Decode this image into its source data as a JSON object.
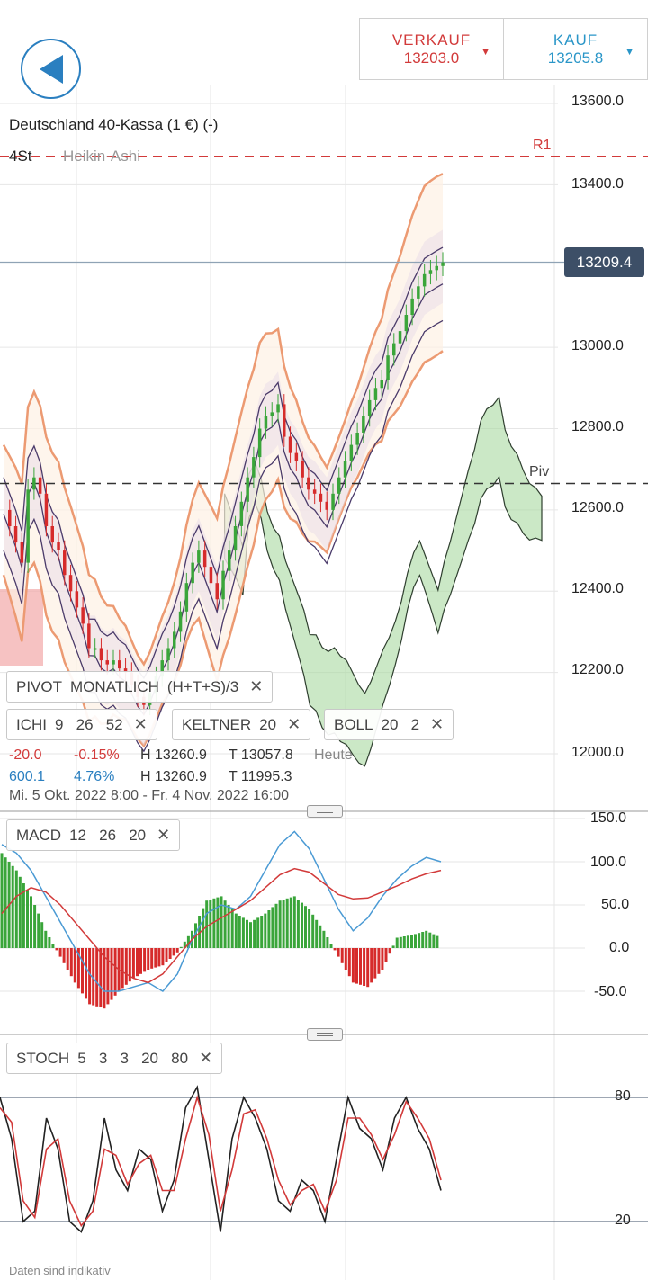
{
  "header": {
    "sell_label": "VERKAUF",
    "sell_price": "13203.0",
    "buy_label": "KAUF",
    "buy_price": "13205.8",
    "sell_color": "#d23a3a",
    "buy_color": "#2a96c8"
  },
  "instrument": {
    "title": "Deutschland 40-Kassa (1 €) (-)",
    "timeframe": "4St",
    "chart_type": "Heikin-Ashi"
  },
  "levels": {
    "r1_label": "R1",
    "pivot_label": "Piv",
    "current_price": "13209.4"
  },
  "indicators": {
    "pivot": {
      "name": "PIVOT",
      "period": "MONATLICH",
      "formula": "(H+T+S)/3"
    },
    "ichi": {
      "name": "ICHI",
      "params": "9   26   52"
    },
    "keltner": {
      "name": "KELTNER",
      "params": "20"
    },
    "boll": {
      "name": "BOLL",
      "params": "20   2"
    },
    "macd": {
      "name": "MACD",
      "params": "12   26   20"
    },
    "stoch": {
      "name": "STOCH",
      "params": "5   3   3   20   80"
    }
  },
  "stats": {
    "day_change": "-20.0",
    "day_change_pct": "-0.15%",
    "day_high": "H 13260.9",
    "day_low": "T 13057.8",
    "day_label": "Heute",
    "range_change": "600.1",
    "range_change_pct": "4.76%",
    "range_high": "H 13260.9",
    "range_low": "T 11995.3",
    "range_dates": "Mi. 5 Okt. 2022 8:00 - Fr. 4 Nov. 2022 16:00"
  },
  "footer": {
    "disclaimer": "Daten sind indikativ"
  },
  "icons": {
    "back": "back-arrow-icon",
    "close": "close-icon",
    "dropdown": "triangle-down-icon"
  },
  "chart_data": [
    {
      "type": "candlestick",
      "style": "Heikin-Ashi",
      "title": "Deutschland 40-Kassa (1 €) (-)",
      "ylim": [
        11850,
        13680
      ],
      "y_ticks": [
        "13600.0",
        "13400.0",
        "13000.0",
        "12800.0",
        "12600.0",
        "12400.0",
        "12200.0",
        "12000.0"
      ],
      "pivot": 12665,
      "r1": 13470,
      "last": 13209.4,
      "up_color": "#3aa53a",
      "down_color": "#d62b2b",
      "bollinger_color": "#ec9a72",
      "keltner_color": "#4a3a6a",
      "cloud_up_color": "#a8d8a0",
      "cloud_down_color": "#f2a8a8",
      "close_series": [
        12600,
        12560,
        12520,
        12470,
        12650,
        12680,
        12640,
        12560,
        12520,
        12500,
        12440,
        12400,
        12360,
        12320,
        12260,
        12260,
        12230,
        12220,
        12230,
        12210,
        12200,
        12170,
        12140,
        12120,
        12150,
        12190,
        12230,
        12260,
        12300,
        12350,
        12420,
        12470,
        12500,
        12460,
        12420,
        12380,
        12450,
        12500,
        12560,
        12620,
        12680,
        12730,
        12800,
        12830,
        12840,
        12860,
        12780,
        12740,
        12720,
        12680,
        12650,
        12640,
        12620,
        12600,
        12640,
        12680,
        12720,
        12760,
        12790,
        12830,
        12870,
        12900,
        12920,
        12980,
        13010,
        13040,
        13080,
        13120,
        13150,
        13180,
        13190,
        13200,
        13209
      ]
    },
    {
      "type": "line",
      "title": "MACD",
      "ylim": [
        -80,
        160
      ],
      "y_ticks": [
        "150.0",
        "100.0",
        "50.0",
        "0.0",
        "-50.0"
      ],
      "series": [
        {
          "name": "MACD",
          "color": "#4a9ad4",
          "values": [
            120,
            110,
            90,
            60,
            30,
            0,
            -30,
            -50,
            -50,
            -45,
            -40,
            -50,
            -30,
            10,
            40,
            50,
            45,
            60,
            90,
            120,
            135,
            115,
            80,
            45,
            20,
            35,
            60,
            80,
            95,
            105,
            100
          ]
        },
        {
          "name": "Signal",
          "color": "#d23a3a",
          "values": [
            40,
            60,
            70,
            65,
            50,
            30,
            10,
            -10,
            -25,
            -35,
            -40,
            -30,
            -10,
            10,
            25,
            35,
            45,
            55,
            70,
            85,
            92,
            88,
            75,
            62,
            57,
            58,
            65,
            72,
            80,
            86,
            90
          ]
        },
        {
          "name": "Histogram",
          "color": "#3aa53a",
          "values": [
            110,
            90,
            60,
            20,
            -10,
            -40,
            -65,
            -70,
            -50,
            -35,
            -25,
            -20,
            -5,
            20,
            55,
            60,
            40,
            30,
            40,
            55,
            60,
            45,
            20,
            -10,
            -40,
            -45,
            -25,
            12,
            15,
            20,
            12
          ]
        }
      ]
    },
    {
      "type": "line",
      "title": "STOCH",
      "ylim": [
        0,
        100
      ],
      "y_ticks": [
        "80",
        "20"
      ],
      "series": [
        {
          "name": "%K",
          "color": "#222222",
          "values": [
            80,
            60,
            20,
            25,
            70,
            55,
            20,
            15,
            30,
            70,
            45,
            35,
            55,
            50,
            25,
            40,
            75,
            85,
            50,
            15,
            60,
            80,
            70,
            55,
            30,
            25,
            40,
            35,
            20,
            50,
            80,
            65,
            60,
            45,
            70,
            80,
            65,
            55,
            35
          ]
        },
        {
          "name": "%D",
          "color": "#d23a3a",
          "values": [
            75,
            68,
            30,
            22,
            55,
            60,
            30,
            18,
            25,
            55,
            52,
            38,
            48,
            52,
            35,
            35,
            60,
            80,
            62,
            25,
            45,
            72,
            74,
            60,
            40,
            28,
            35,
            38,
            25,
            40,
            70,
            70,
            62,
            50,
            62,
            78,
            70,
            60,
            40
          ]
        }
      ]
    }
  ]
}
